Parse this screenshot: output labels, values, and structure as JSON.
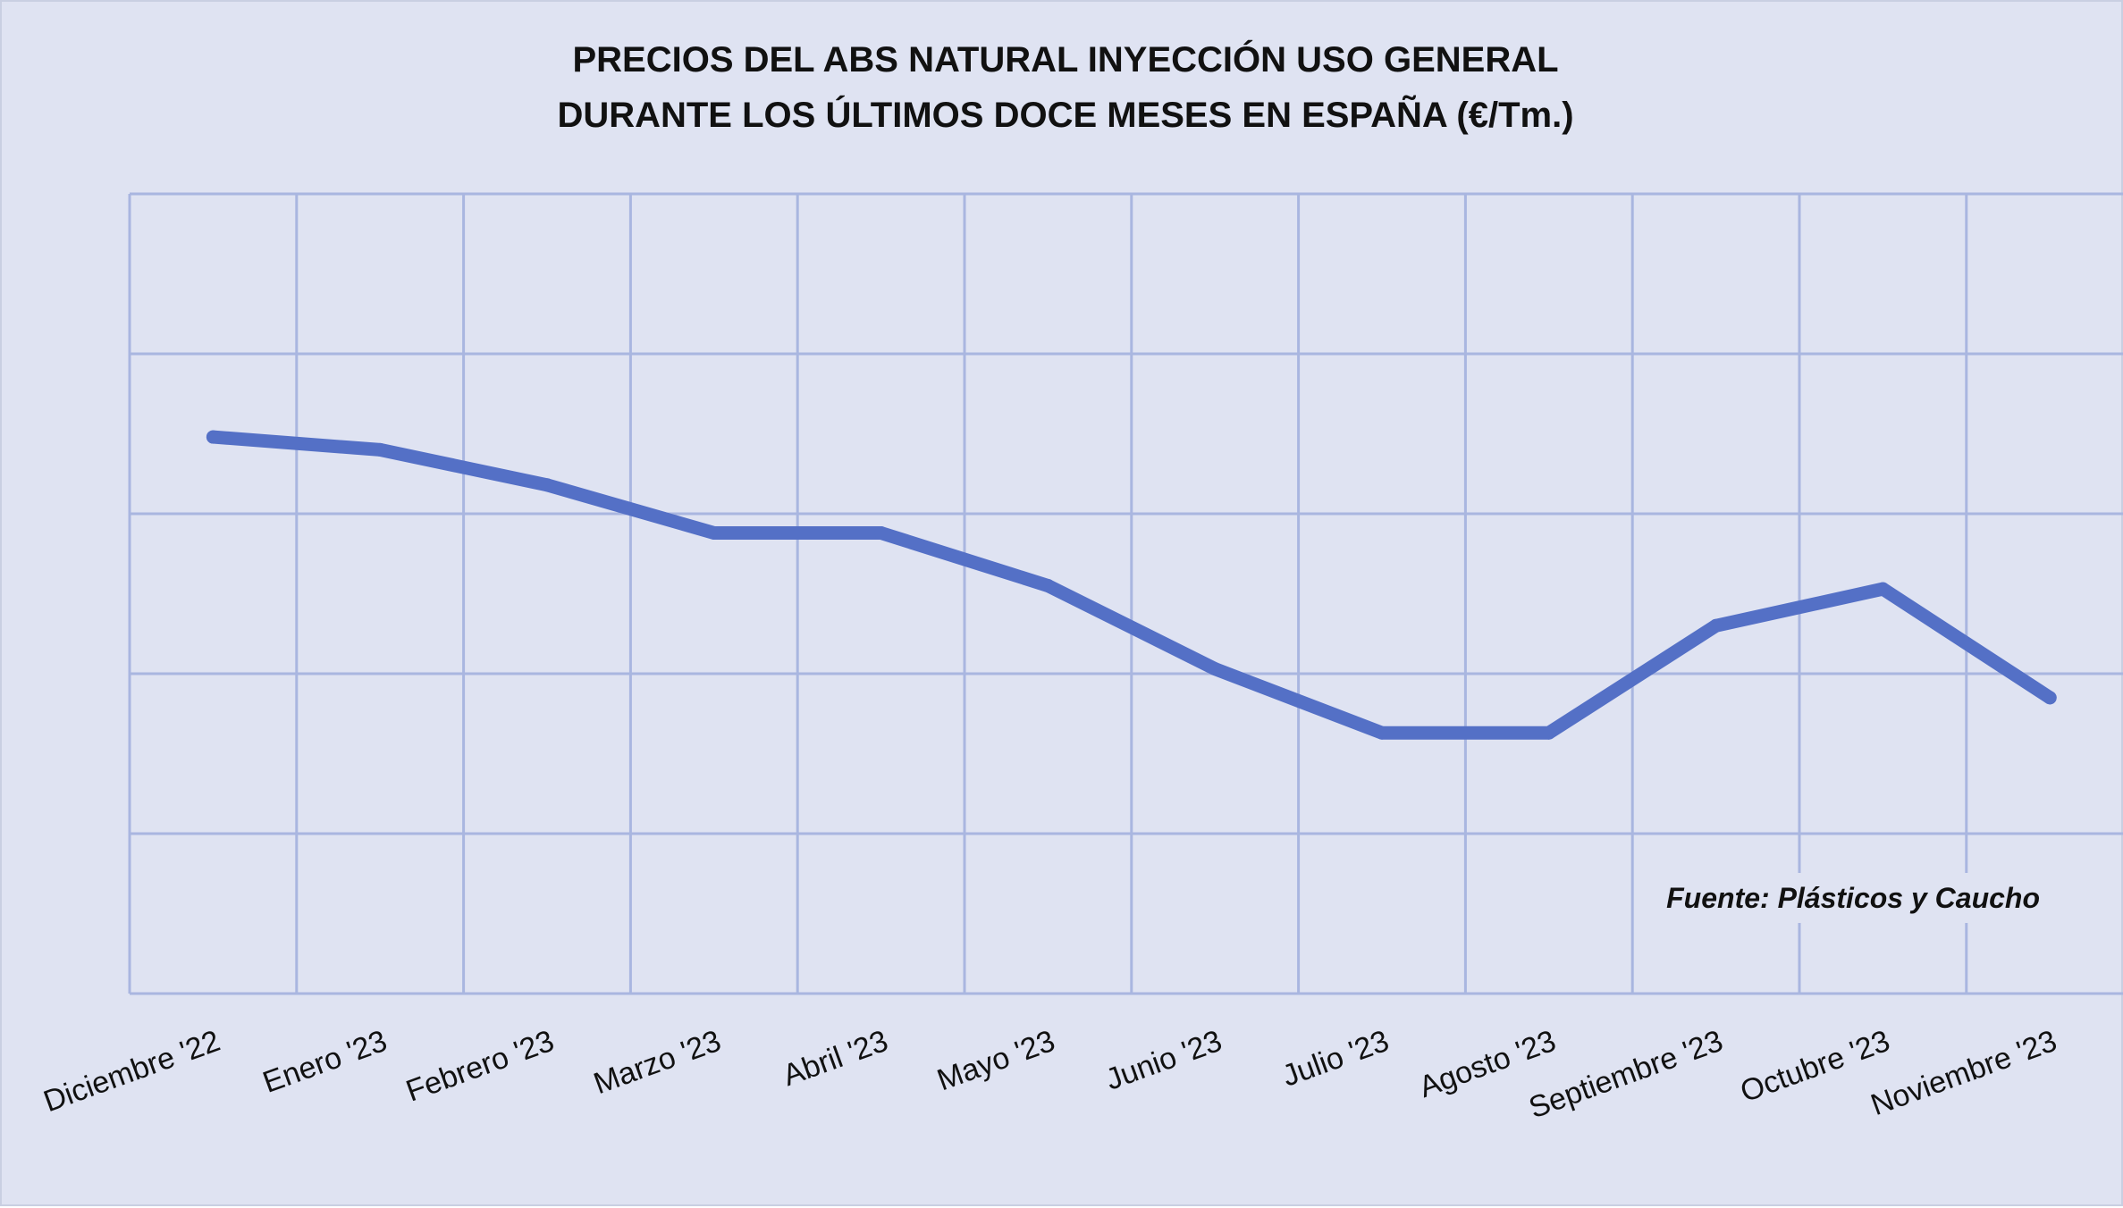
{
  "chart_data": {
    "type": "line",
    "title_lines": [
      "PRECIOS DEL ABS NATURAL INYECCIÓN  USO GENERAL",
      "DURANTE LOS ÚLTIMOS DOCE MESES EN ESPAÑA (€/Tm.)"
    ],
    "categories": [
      "Diciembre '22",
      "Enero '23",
      "Febrero '23",
      "Marzo '23",
      "Abril '23",
      "Mayo '23",
      "Junio '23",
      "Julio '23",
      "Agosto '23",
      "Septiembre '23",
      "Octubre '23",
      "Noviembre '23"
    ],
    "series": [
      {
        "values": [
          3.48,
          3.4,
          3.18,
          2.88,
          2.88,
          2.55,
          2.03,
          1.63,
          1.63,
          2.3,
          2.53,
          1.85
        ]
      }
    ],
    "ylim": [
      0,
      5
    ],
    "y_gridline_count": 5,
    "grid": true,
    "y_tick_labels_shown": false,
    "source": "Fuente: Plásticos y Caucho",
    "colors": {
      "background": "#dfe3f2",
      "grid": "#a9b6e0",
      "line": "#5470c6",
      "text": "#111111"
    }
  }
}
